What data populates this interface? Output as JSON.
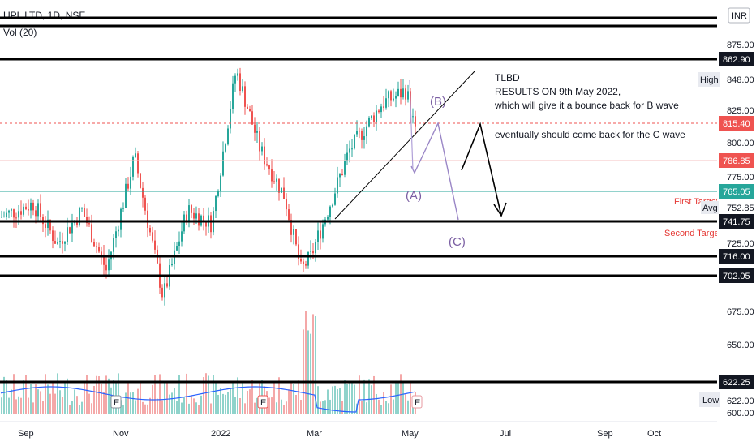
{
  "header": {
    "symbol_line": "UPL LTD, 1D, NSE",
    "volume_label": "Vol (20)"
  },
  "currency": "INR",
  "colors": {
    "up": "#26a69a",
    "down": "#ef5350",
    "hline": "#000000",
    "ma": "#2962ff",
    "trend": "#000000",
    "wave": "#7b5fa3",
    "teal_line": "#26a69a",
    "red_dash": "#ef5350",
    "target_text": "#e53935"
  },
  "price_axis": {
    "labels": [
      "875.00",
      "848.00",
      "825.00",
      "800.00",
      "775.00",
      "752.85",
      "725.00",
      "675.00",
      "650.00",
      "622.00",
      "600.00"
    ],
    "high_label": "High",
    "low_label": "Low",
    "avg_label": "Avg"
  },
  "price_tags": [
    {
      "name": "level-862-90",
      "text": "862.90",
      "style": "black"
    },
    {
      "name": "level-815-40",
      "text": "815.40",
      "style": "red"
    },
    {
      "name": "level-786-85",
      "text": "786.85",
      "style": "red"
    },
    {
      "name": "level-765-05",
      "text": "765.05",
      "style": "teal"
    },
    {
      "name": "level-741-75",
      "text": "741.75",
      "style": "black"
    },
    {
      "name": "level-716-00",
      "text": "716.00",
      "style": "black"
    },
    {
      "name": "level-702-05",
      "text": "702.05",
      "style": "black"
    },
    {
      "name": "level-622-25",
      "text": "622.25",
      "style": "black"
    }
  ],
  "time_axis": [
    "Sep",
    "Nov",
    "2022",
    "Mar",
    "May",
    "Jul",
    "Sep",
    "Oct"
  ],
  "annotations": {
    "notes": [
      "TLBD",
      "RESULTS ON 9th May 2022,",
      "which will give it a bounce back for B wave",
      "eventually should come back for the C wave"
    ],
    "waves": [
      "(B)",
      "(A)",
      "(C)"
    ],
    "targets": [
      "First Target",
      "Second Target"
    ],
    "earnings_badge": "E"
  },
  "chart_data": {
    "type": "candlestick",
    "symbol": "UPL LTD",
    "interval": "1D",
    "exchange": "NSE",
    "currency": "INR",
    "price_range": [
      595,
      895
    ],
    "grid": false,
    "horizontal_levels": [
      862.9,
      815.4,
      786.85,
      765.05,
      741.75,
      716.0,
      702.05,
      622.25
    ],
    "price_labels": [
      "875.00",
      "848.00",
      "825.00",
      "800.00",
      "775.00",
      "752.85",
      "725.00",
      "675.00",
      "650.00",
      "622.00",
      "600.00"
    ],
    "high": 848.0,
    "low": 622.0,
    "avg": 752.85,
    "last_price": 765.05,
    "x_ticks": [
      "Sep",
      "Nov",
      "2022",
      "Mar",
      "May",
      "Jul",
      "Sep",
      "Oct"
    ],
    "series": [
      {
        "name": "Vol (20)",
        "kind": "volume with moving average"
      }
    ]
  }
}
